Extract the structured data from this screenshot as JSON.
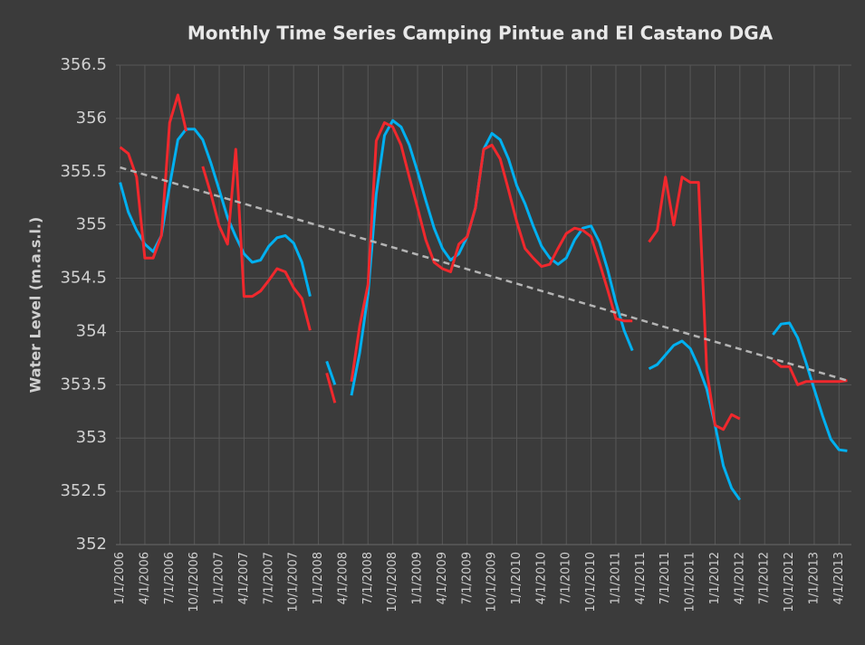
{
  "chart_data": {
    "type": "line",
    "title": "Monthly Time Series Camping Pintue and El Castano DGA",
    "y_label": "Water Level (m.a.s.l.)",
    "categories": [
      "1/1/2006",
      null,
      null,
      "4/1/2006",
      null,
      null,
      "7/1/2006",
      null,
      null,
      "10/1/2006",
      null,
      null,
      "1/1/2007",
      null,
      null,
      "4/1/2007",
      null,
      null,
      "7/1/2007",
      null,
      null,
      "10/1/2007",
      null,
      null,
      "1/1/2008",
      null,
      null,
      "4/1/2008",
      null,
      null,
      "7/1/2008",
      null,
      null,
      "10/1/2008",
      null,
      null,
      "1/1/2009",
      null,
      null,
      "4/1/2009",
      null,
      null,
      "7/1/2009",
      null,
      null,
      "10/1/2009",
      null,
      null,
      "1/1/2010",
      null,
      null,
      "4/1/2010",
      null,
      null,
      "7/1/2010",
      null,
      null,
      "10/1/2010",
      null,
      null,
      "1/1/2011",
      null,
      null,
      "4/1/2011",
      null,
      null,
      "7/1/2011",
      null,
      null,
      "10/1/2011",
      null,
      null,
      "1/1/2012",
      null,
      null,
      "4/1/2012",
      null,
      null,
      "7/1/2012",
      null,
      null,
      "10/1/2012",
      null,
      null,
      "1/1/2013",
      null,
      null,
      "4/1/2013",
      null
    ],
    "series": [
      {
        "color": "#00b0f0",
        "values": [
          355.4,
          355.12,
          354.95,
          354.82,
          354.75,
          354.9,
          355.37,
          355.8,
          355.9,
          355.9,
          355.8,
          355.58,
          355.33,
          355.07,
          354.89,
          354.73,
          354.65,
          354.67,
          354.8,
          354.88,
          354.9,
          354.83,
          354.65,
          354.33,
          null,
          353.72,
          353.5,
          null,
          353.4,
          353.8,
          354.35,
          355.29,
          355.84,
          355.98,
          355.92,
          355.75,
          355.5,
          355.23,
          354.97,
          354.78,
          354.67,
          354.73,
          354.89,
          355.16,
          355.71,
          355.86,
          355.8,
          355.62,
          355.37,
          355.2,
          354.99,
          354.8,
          354.69,
          354.63,
          354.69,
          354.86,
          354.97,
          354.99,
          354.84,
          354.58,
          354.27,
          354.01,
          353.82,
          null,
          353.65,
          353.69,
          353.78,
          353.87,
          353.91,
          353.84,
          353.67,
          353.46,
          353.12,
          352.74,
          352.53,
          352.42,
          null,
          null,
          null,
          353.97,
          354.07,
          354.08,
          353.94,
          353.71,
          353.46,
          353.21,
          352.99,
          352.89,
          352.88
        ]
      },
      {
        "color": "#f0282d",
        "values": [
          355.73,
          355.67,
          355.45,
          354.69,
          354.69,
          354.9,
          355.96,
          356.22,
          355.88,
          null,
          355.55,
          355.29,
          354.99,
          354.82,
          355.71,
          354.33,
          354.33,
          354.38,
          354.48,
          354.59,
          354.56,
          354.41,
          354.31,
          354.01,
          null,
          353.61,
          353.33,
          null,
          353.53,
          354.05,
          354.44,
          355.79,
          355.96,
          355.92,
          355.75,
          355.45,
          355.16,
          354.86,
          354.65,
          354.59,
          354.56,
          354.82,
          354.89,
          355.16,
          355.71,
          355.75,
          355.62,
          355.33,
          355.03,
          354.78,
          354.69,
          354.61,
          354.63,
          354.78,
          354.92,
          354.97,
          354.95,
          354.89,
          354.65,
          354.39,
          354.12,
          354.1,
          354.1,
          null,
          354.84,
          354.95,
          355.45,
          355.0,
          355.45,
          355.4,
          355.4,
          353.63,
          353.12,
          353.08,
          353.22,
          353.18,
          null,
          null,
          null,
          353.73,
          353.67,
          353.67,
          353.5,
          353.53,
          353.53,
          353.53,
          353.53,
          353.53,
          353.54
        ]
      }
    ],
    "trend": [
      355.54,
      353.54
    ],
    "trend_color": "#b4b4b4",
    "ylim": [
      352,
      356.5
    ],
    "yticks": [
      352,
      352.5,
      353,
      353.5,
      354,
      354.5,
      355,
      355.5,
      356,
      356.5
    ],
    "grid": true
  }
}
